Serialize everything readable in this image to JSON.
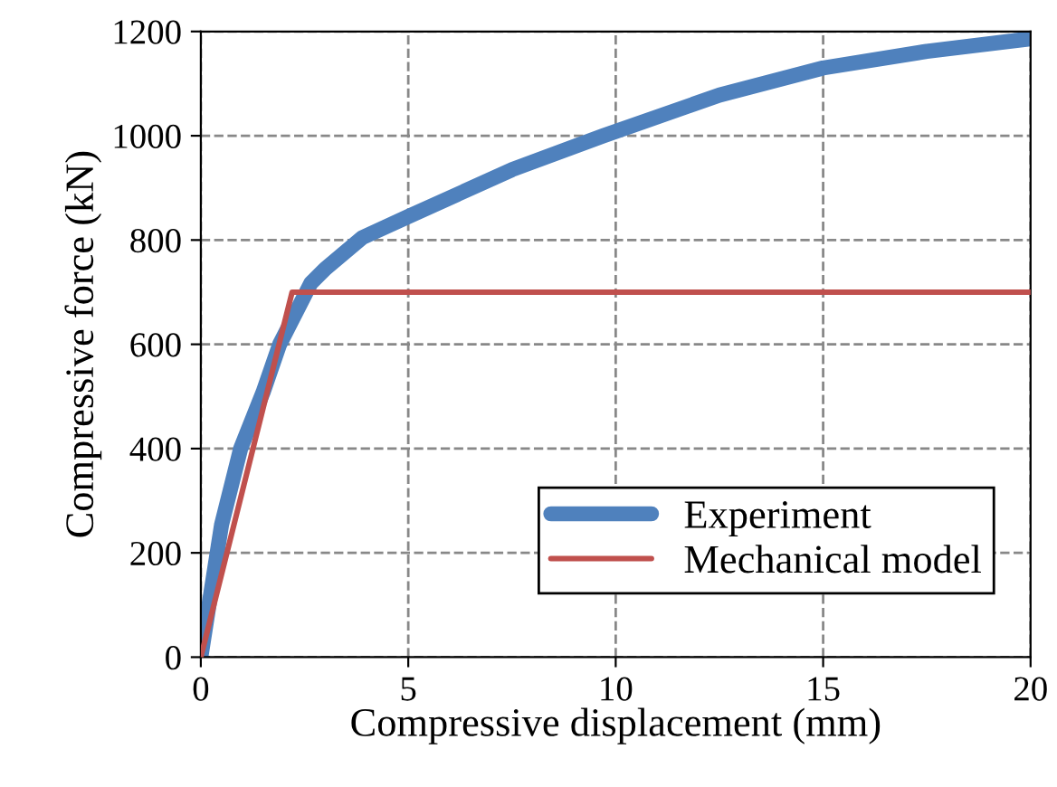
{
  "chart_data": {
    "type": "line",
    "xlabel": "Compressive displacement (mm)",
    "ylabel": "Compressive force (kN)",
    "xlim": [
      0,
      20
    ],
    "ylim": [
      0,
      1200
    ],
    "xticks": [
      0,
      5,
      10,
      15,
      20
    ],
    "yticks": [
      0,
      200,
      400,
      600,
      800,
      1000,
      1200
    ],
    "grid": true,
    "legend": "bottom right",
    "series": [
      {
        "name": "Experiment",
        "color": "#4f81bd",
        "x": [
          0,
          0.5,
          0.96,
          1.5,
          1.9,
          2.65,
          3.0,
          3.9,
          5,
          7.5,
          9.7,
          12.5,
          15,
          17.5,
          20
        ],
        "values": [
          0,
          254,
          400,
          508,
          600,
          717,
          745,
          805,
          845,
          935,
          1000,
          1078,
          1130,
          1162,
          1186
        ]
      },
      {
        "name": "Mechanical model",
        "color": "#c0504d",
        "x": [
          0,
          2.2,
          20
        ],
        "values": [
          0,
          700,
          700
        ]
      }
    ]
  }
}
